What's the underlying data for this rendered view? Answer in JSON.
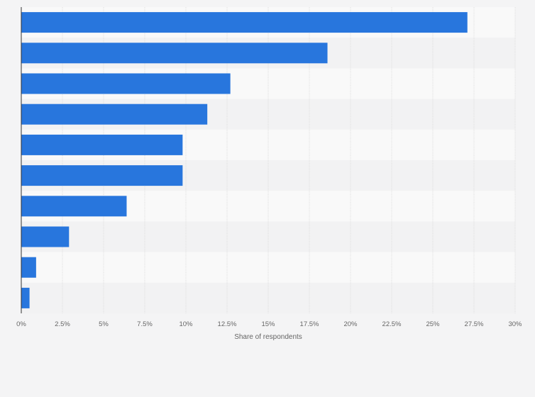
{
  "chart_data": {
    "type": "bar",
    "orientation": "horizontal",
    "categories": [
      "",
      "",
      "",
      "",
      "",
      "",
      "",
      "",
      "",
      ""
    ],
    "values": [
      27.1,
      18.6,
      12.7,
      11.3,
      9.8,
      9.8,
      6.4,
      2.9,
      0.9,
      0.5
    ],
    "xlabel": "Share of respondents",
    "ylabel": "",
    "xlim": [
      0,
      30
    ],
    "x_ticks": [
      "0%",
      "2.5%",
      "5%",
      "7.5%",
      "10%",
      "12.5%",
      "15%",
      "17.5%",
      "20%",
      "22.5%",
      "25%",
      "27.5%",
      "30%"
    ],
    "grid": true,
    "legend": "none",
    "colors": {
      "bar": "#2876dd",
      "band_light": "#f9f9f9",
      "band_dark": "#f2f2f3",
      "grid": "#dcdcdc",
      "axis": "#333333",
      "background": "#f4f4f5"
    }
  }
}
